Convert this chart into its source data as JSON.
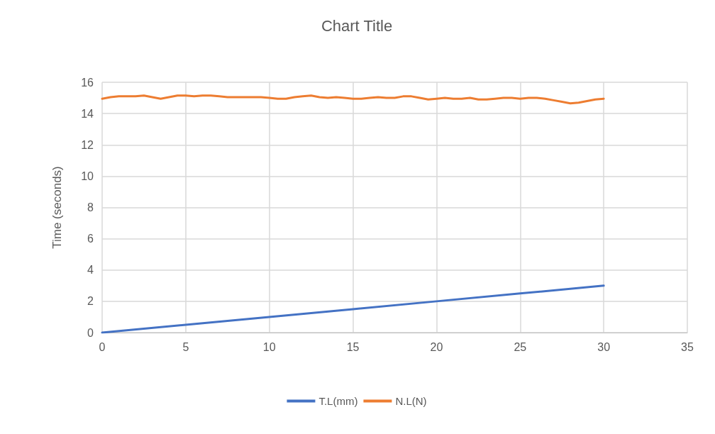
{
  "chart_data": {
    "type": "line",
    "title": "Chart Title",
    "ylabel": "Time (seconds)",
    "xlim": [
      0,
      35
    ],
    "xticks": [
      0,
      5,
      10,
      15,
      20,
      25,
      30,
      35
    ],
    "ylim": [
      0,
      16
    ],
    "yticks": [
      0,
      2,
      4,
      6,
      8,
      10,
      12,
      14,
      16
    ],
    "grid": true,
    "legend": "bottom",
    "marker": "none",
    "line_style": "solid",
    "series": [
      {
        "name": "T.L(mm)",
        "color": "#4472c4",
        "x": [
          0,
          5,
          10,
          15,
          20,
          25,
          30
        ],
        "values": [
          0,
          0.5,
          1,
          1.5,
          2,
          2.5,
          3
        ]
      },
      {
        "name": "N.L(N)",
        "color": "#ed7d31",
        "x": [
          0,
          0.5,
          1,
          1.5,
          2,
          2.5,
          3,
          3.5,
          4,
          4.5,
          5,
          5.5,
          6,
          6.5,
          7,
          7.5,
          8,
          8.5,
          9,
          9.5,
          10,
          10.5,
          11,
          11.5,
          12,
          12.5,
          13,
          13.5,
          14,
          14.5,
          15,
          15.5,
          16,
          16.5,
          17,
          17.5,
          18,
          18.5,
          19,
          19.5,
          20,
          20.5,
          21,
          21.5,
          22,
          22.5,
          23,
          23.5,
          24,
          24.5,
          25,
          25.5,
          26,
          26.5,
          27,
          27.5,
          28,
          28.5,
          29,
          29.5,
          30
        ],
        "values": [
          14.95,
          15.05,
          15.1,
          15.1,
          15.1,
          15.15,
          15.05,
          14.95,
          15.05,
          15.15,
          15.15,
          15.1,
          15.15,
          15.15,
          15.1,
          15.05,
          15.05,
          15.05,
          15.05,
          15.05,
          15.0,
          14.95,
          14.95,
          15.05,
          15.1,
          15.15,
          15.05,
          15.0,
          15.05,
          15.0,
          14.95,
          14.95,
          15.0,
          15.05,
          15.0,
          15.0,
          15.1,
          15.1,
          15.0,
          14.9,
          14.95,
          15.0,
          14.95,
          14.95,
          15.0,
          14.9,
          14.9,
          14.95,
          15.0,
          15.0,
          14.95,
          15.0,
          15.0,
          14.95,
          14.85,
          14.75,
          14.65,
          14.7,
          14.8,
          14.9,
          14.95
        ]
      }
    ]
  }
}
